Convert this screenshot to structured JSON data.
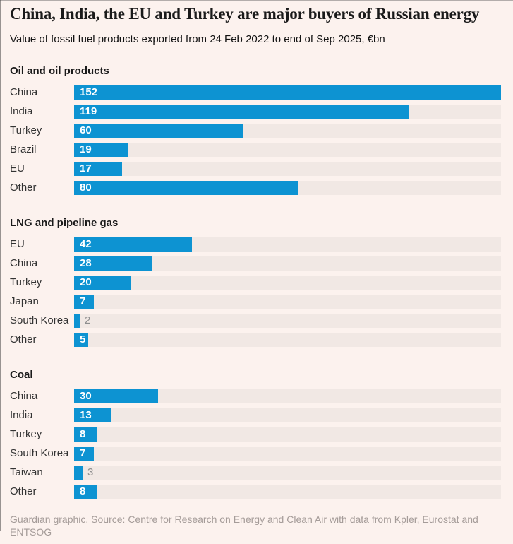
{
  "chart_data": {
    "type": "bar",
    "orientation": "horizontal",
    "title": "China, India, the EU and Turkey are major buyers of Russian energy",
    "subtitle": "Value of fossil fuel products exported from 24 Feb 2022 to end of Sep 2025, €bn",
    "unit": "€bn",
    "xlim": [
      0,
      152
    ],
    "bar_color": "#0d93d2",
    "track_color": "#f1e8e4",
    "value_label_inside_color": "#ffffff",
    "value_label_outside_color": "#8e8e8e",
    "grid": false,
    "legend": false,
    "sections": [
      {
        "heading": "Oil and oil products",
        "categories": [
          "China",
          "India",
          "Turkey",
          "Brazil",
          "EU",
          "Other"
        ],
        "values": [
          152,
          119,
          60,
          19,
          17,
          80
        ]
      },
      {
        "heading": "LNG and pipeline gas",
        "categories": [
          "EU",
          "China",
          "Turkey",
          "Japan",
          "South Korea",
          "Other"
        ],
        "values": [
          42,
          28,
          20,
          7,
          2,
          5
        ]
      },
      {
        "heading": "Coal",
        "categories": [
          "China",
          "India",
          "Turkey",
          "South Korea",
          "Taiwan",
          "Other"
        ],
        "values": [
          30,
          13,
          8,
          7,
          3,
          8
        ]
      }
    ]
  },
  "footer": {
    "source": "Guardian graphic. Source: Centre for Research on Energy and Clean Air with data from Kpler, Eurostat and ENTSOG"
  }
}
